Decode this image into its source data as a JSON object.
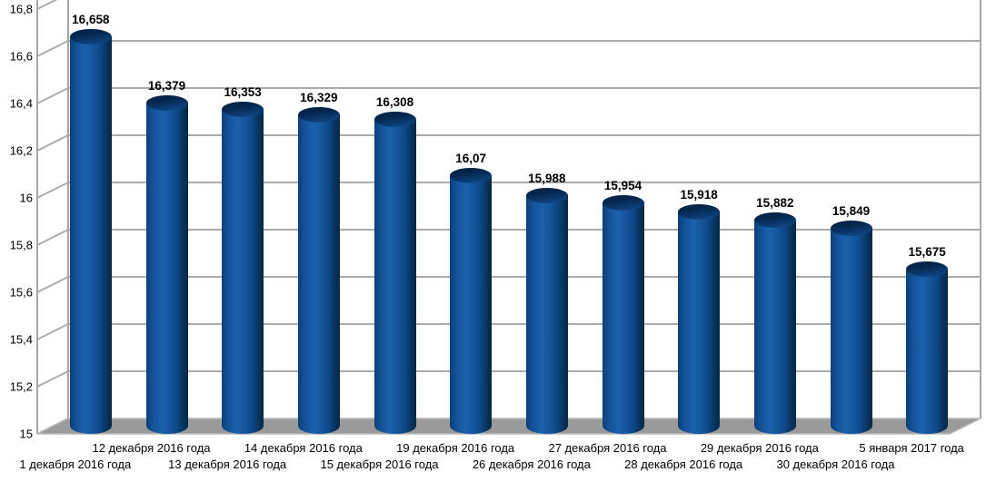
{
  "chart_data": {
    "type": "bar",
    "style": "3d-cylinder",
    "title": "",
    "xlabel": "",
    "ylabel": "",
    "legend": "none",
    "grid": true,
    "ylim": [
      15,
      16.8
    ],
    "y_tick_step": 0.2,
    "y_tick_labels": [
      "16,8",
      "16,6",
      "16,4",
      "16,2",
      "16",
      "15,8",
      "15,6",
      "15,4",
      "15,2",
      "15"
    ],
    "categories": [
      "1 декабря 2016 года",
      "12 декабря 2016 года",
      "13 декабря 2016 года",
      "14 декабря 2016 года",
      "15 декабря 2016 года",
      "19 декабря 2016 года",
      "26 декабря 2016 года",
      "27 декабря 2016 года",
      "28 декабря 2016 года",
      "29 декабря 2016 года",
      "30 декабря 2016 года",
      "5 января 2017 года"
    ],
    "values": [
      16.658,
      16.379,
      16.353,
      16.329,
      16.308,
      16.07,
      15.988,
      15.954,
      15.918,
      15.882,
      15.849,
      15.675
    ],
    "value_labels": [
      "16,658",
      "16,379",
      "16,353",
      "16,329",
      "16,308",
      "16,07",
      "15,988",
      "15,954",
      "15,918",
      "15,882",
      "15,849",
      "15,675"
    ],
    "colors": {
      "bar": "#004586",
      "grid": "#ababab",
      "wall_edge": "#a6a6a6",
      "floor": "#9a9a9a",
      "text": "#000000",
      "background": "#ffffff"
    }
  }
}
